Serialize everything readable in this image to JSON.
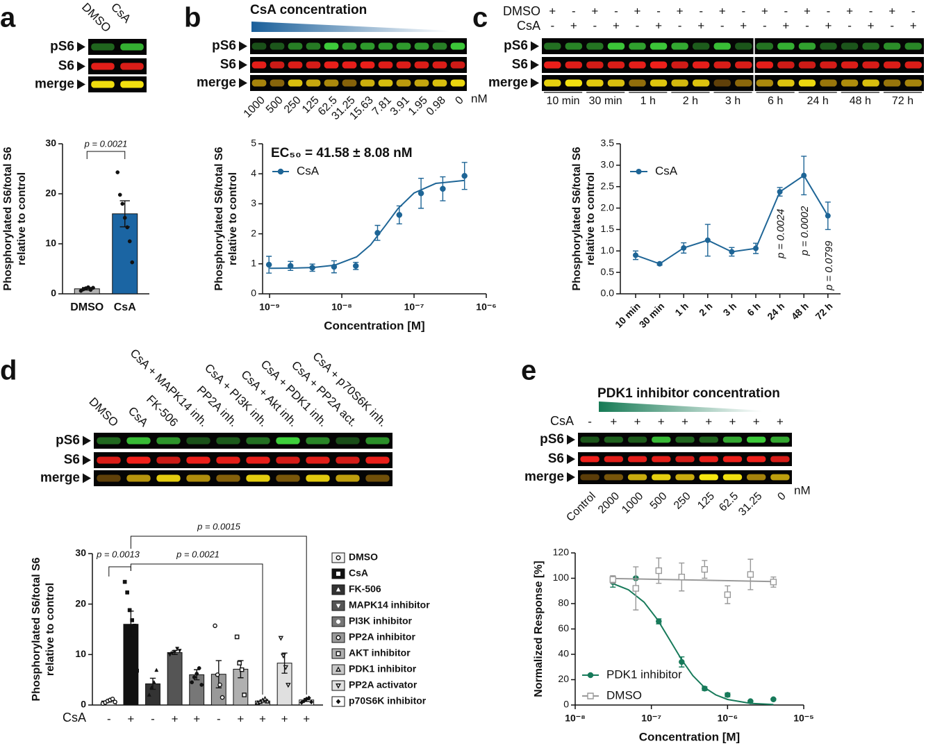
{
  "panel_letters": [
    "a",
    "b",
    "c",
    "d",
    "e"
  ],
  "blots": [
    {
      "rows": [
        "pS6",
        "S6",
        "merge"
      ],
      "lanes": [
        "DMSO",
        "CsA"
      ]
    },
    {
      "header": "CsA concentration",
      "rows": [
        "pS6",
        "S6",
        "merge"
      ],
      "lanes": [
        "1000",
        "500",
        "250",
        "125",
        "62.5",
        "31.25",
        "15.63",
        "7.81",
        "3.91",
        "1.95",
        "0.98",
        "0"
      ],
      "unit": "nM"
    },
    {
      "conditions": [
        {
          "name": "DMSO",
          "marks": [
            "+",
            "-",
            "+",
            "-",
            "+",
            "-",
            "+",
            "-",
            "+",
            "-",
            "+",
            "-",
            "+",
            "-",
            "+",
            "-",
            "+",
            "-"
          ]
        },
        {
          "name": "CsA",
          "marks": [
            "-",
            "+",
            "-",
            "+",
            "-",
            "+",
            "-",
            "+",
            "-",
            "+",
            "-",
            "+",
            "-",
            "+",
            "-",
            "+",
            "-",
            "+"
          ]
        }
      ],
      "rows": [
        "pS6",
        "S6",
        "merge"
      ],
      "times": [
        "10 min",
        "30 min",
        "1 h",
        "2 h",
        "3 h",
        "6 h",
        "24 h",
        "48 h",
        "72 h"
      ]
    },
    {
      "rows": [
        "pS6",
        "S6",
        "merge"
      ],
      "lanes": [
        "DMSO",
        "CsA",
        "FK-506",
        "CsA + MAPK14 inh.",
        "PP2A inh.",
        "CsA + PI3K inh.",
        "CsA + Akt inh.",
        "CsA + PDK1 inh.",
        "CsA + PP2A act.",
        "CsA + p70S6K inh."
      ]
    },
    {
      "header": "PDK1 inhibitor concentration",
      "conditions": [
        {
          "name": "CsA",
          "marks": [
            "-",
            "+",
            "+",
            "+",
            "+",
            "+",
            "+",
            "+",
            "+"
          ]
        }
      ],
      "rows": [
        "pS6",
        "S6",
        "merge"
      ],
      "lanes": [
        "Control",
        "2000",
        "1000",
        "500",
        "250",
        "125",
        "62.5",
        "31.25",
        "0"
      ],
      "unit": "nM"
    }
  ],
  "chart_data": [
    {
      "type": "bar",
      "categories": [
        "DMSO",
        "CsA"
      ],
      "values": [
        1.0,
        16.0
      ],
      "errors": [
        0.25,
        2.6
      ],
      "points": [
        [
          0.6,
          0.9,
          1.1,
          1.3,
          0.8,
          1.2
        ],
        [
          24.3,
          19.8,
          18.0,
          15.2,
          13.3,
          10.5,
          6.3
        ]
      ],
      "colors": [
        "#b3b3b3",
        "#1b65a3"
      ],
      "markers": [
        "circle",
        "circle"
      ],
      "ylabel": [
        "Phosphorylated S6/total S6",
        "relative to control"
      ],
      "ylim": [
        0,
        30
      ],
      "yticks": [
        0,
        10,
        20,
        30
      ],
      "annotations": [
        "p = 0.0021"
      ]
    },
    {
      "type": "scatter",
      "title": "EC₅₀ = 41.58 ± 8.08 nM",
      "x": [
        9.8e-10,
        1.95e-09,
        3.91e-09,
        7.81e-09,
        1.563e-08,
        3.125e-08,
        6.25e-08,
        1.25e-07,
        2.5e-07,
        5e-07
      ],
      "series": [
        {
          "name": "CsA",
          "color": "#1e6596",
          "marker": "circle",
          "values": [
            0.97,
            0.93,
            0.87,
            0.9,
            0.93,
            2.03,
            2.63,
            3.35,
            3.5,
            3.93
          ],
          "errors": [
            0.28,
            0.15,
            0.12,
            0.2,
            0.12,
            0.25,
            0.3,
            0.5,
            0.4,
            0.45
          ],
          "fit": {
            "x": [
              1e-09,
              2e-09,
              4e-09,
              8e-09,
              1.6e-08,
              2.5e-08,
              4e-08,
              6e-08,
              1e-07,
              2e-07,
              5e-07
            ],
            "values": [
              0.852,
              0.857,
              0.877,
              0.955,
              1.23,
              1.63,
              2.27,
              2.84,
              3.36,
              3.68,
              3.78
            ]
          }
        }
      ],
      "xscale": "log",
      "xlim": [
        8e-10,
        1e-06
      ],
      "xticks": [
        {
          "value": 1e-09,
          "label": "10⁻⁹"
        },
        {
          "value": 1e-08,
          "label": "10⁻⁸"
        },
        {
          "value": 1e-07,
          "label": "10⁻⁷"
        },
        {
          "value": 1e-06,
          "label": "10⁻⁶"
        }
      ],
      "ylim": [
        0,
        5
      ],
      "yticks": [
        0,
        1,
        2,
        3,
        4,
        5
      ],
      "xlabel": "Concentration [M]",
      "ylabel": [
        "Phosphorylated S6/total S6",
        "relative to control"
      ],
      "legend": "upper left"
    },
    {
      "type": "line",
      "categories": [
        "10 min",
        "30 min",
        "1 h",
        "2 h",
        "3 h",
        "6 h",
        "24 h",
        "48 h",
        "72 h"
      ],
      "series": [
        {
          "name": "CsA",
          "color": "#1e6596",
          "values": [
            0.9,
            0.7,
            1.07,
            1.25,
            0.98,
            1.06,
            2.38,
            2.76,
            1.82
          ],
          "errors": [
            0.1,
            0.03,
            0.12,
            0.37,
            0.1,
            0.12,
            0.1,
            0.45,
            0.32
          ]
        }
      ],
      "ylim": [
        0,
        3.5
      ],
      "yticks": [
        {
          "value": 0,
          "label": "0.0"
        },
        0.5,
        {
          "value": 1,
          "label": "1.0"
        },
        1.5,
        {
          "value": 2,
          "label": "2.0"
        },
        2.5,
        {
          "value": 3,
          "label": "3.0"
        },
        3.5
      ],
      "ylabel": [
        "Phosphorylated S6/total S6",
        "relative to control"
      ],
      "legend": "upper left",
      "annotations": [
        "p = 0.0024",
        "p = 0.0002",
        "p = 0.0799"
      ]
    },
    {
      "type": "bar",
      "categories": [
        "DMSO",
        "CsA",
        "FK-506",
        "MAPK14 inhibitor",
        "PI3K inhibitor",
        "PP2A inhibitor",
        "AKT inhibitor",
        "PDK1 inhibitor",
        "PP2A activator",
        "p70S6K inhibitor"
      ],
      "values": [
        0.8,
        16.0,
        4.2,
        10.4,
        6.0,
        6.1,
        7.1,
        0.8,
        8.3,
        1.0
      ],
      "errors": [
        0.2,
        2.6,
        1.1,
        0.4,
        1.0,
        2.7,
        1.7,
        0.2,
        2.0,
        0.3
      ],
      "points": [
        [
          0.3,
          0.5,
          0.8,
          1.0,
          1.2,
          0.6
        ],
        [
          24.4,
          22.3,
          18.8,
          16.8,
          15.7,
          6.8
        ],
        [
          2.0,
          3.5,
          4.5,
          6.9
        ],
        [
          10.0,
          10.3,
          10.6,
          11.2,
          10.8
        ],
        [
          4.5,
          5.5,
          6.2,
          7.3,
          4.0
        ],
        [
          15.7,
          6.0,
          4.0,
          1.5
        ],
        [
          13.5,
          8.3,
          7.0,
          2.0
        ],
        [
          0.4,
          0.6,
          0.9,
          1.2,
          0.7
        ],
        [
          13.3,
          9.8,
          7.5,
          4.0
        ],
        [
          0.5,
          0.8,
          1.2,
          1.4,
          0.6
        ]
      ],
      "colors": [
        "#f2f2f2",
        "#111111",
        "#333333",
        "#555555",
        "#777777",
        "#999999",
        "#b0b0b0",
        "#c8c8c8",
        "#e0e0e0",
        "#ffffff"
      ],
      "markers": [
        "circle-open",
        "square",
        "triangle",
        "triangle-down",
        "circle",
        "circle-open",
        "square-open",
        "triangle-open",
        "triangle-down-open",
        "diamond"
      ],
      "csa_row": {
        "label": "CsA",
        "marks": [
          "-",
          "+",
          "-",
          "+",
          "+",
          "-",
          "+",
          "+",
          "+",
          "+"
        ]
      },
      "ylabel": [
        "Phosphorylated S6/total S6",
        "relative to control"
      ],
      "ylim": [
        0,
        30
      ],
      "yticks": [
        0,
        10,
        20,
        30
      ],
      "legend": "right",
      "annotations": [
        "p = 0.0013",
        "p = 0.0021",
        "p = 0.0015"
      ]
    },
    {
      "type": "scatter",
      "x": [
        3.125e-08,
        6.25e-08,
        1.25e-07,
        2.5e-07,
        5e-07,
        1e-06,
        2e-06,
        4e-06
      ],
      "series": [
        {
          "name": "PDK1 inhibitor",
          "color": "#177a5a",
          "marker": "circle",
          "values": [
            97,
            100,
            66,
            34,
            13,
            8,
            3,
            4.5
          ],
          "errors": [
            4,
            1,
            2,
            4,
            1.5,
            1.5,
            0.5,
            0.5
          ],
          "fit": {
            "x": [
              3e-08,
              5e-08,
              8e-08,
              1.2e-07,
              1.8e-07,
              2.5e-07,
              3.5e-07,
              5e-07,
              7e-07,
              1e-06,
              2e-06,
              4e-06
            ],
            "values": [
              96.2,
              90.9,
              81.2,
              67.5,
              50,
              35.7,
              23.2,
              13.7,
              8.0,
              4.4,
              1.3,
              0.4
            ]
          }
        },
        {
          "name": "DMSO",
          "color": "#999999",
          "marker": "square-open",
          "values": [
            99,
            92,
            106,
            101,
            107,
            87,
            103,
            97
          ],
          "errors": [
            3,
            17,
            10,
            11,
            7,
            7,
            12,
            4
          ],
          "fit": {
            "x": [
              3e-08,
              4e-06
            ],
            "values": [
              99.8,
              97.4
            ]
          }
        }
      ],
      "xscale": "log",
      "xlim": [
        1e-08,
        1e-05
      ],
      "xticks": [
        {
          "value": 1e-08,
          "label": "10⁻⁸"
        },
        {
          "value": 1e-07,
          "label": "10⁻⁷"
        },
        {
          "value": 1e-06,
          "label": "10⁻⁶"
        },
        {
          "value": 1e-05,
          "label": "10⁻⁵"
        }
      ],
      "ylim": [
        0,
        120
      ],
      "yticks": [
        0,
        20,
        40,
        60,
        80,
        100,
        120
      ],
      "xlabel": "Concentration [M]",
      "ylabel": [
        "Normalized Response [%]"
      ],
      "legend": "lower left"
    }
  ]
}
